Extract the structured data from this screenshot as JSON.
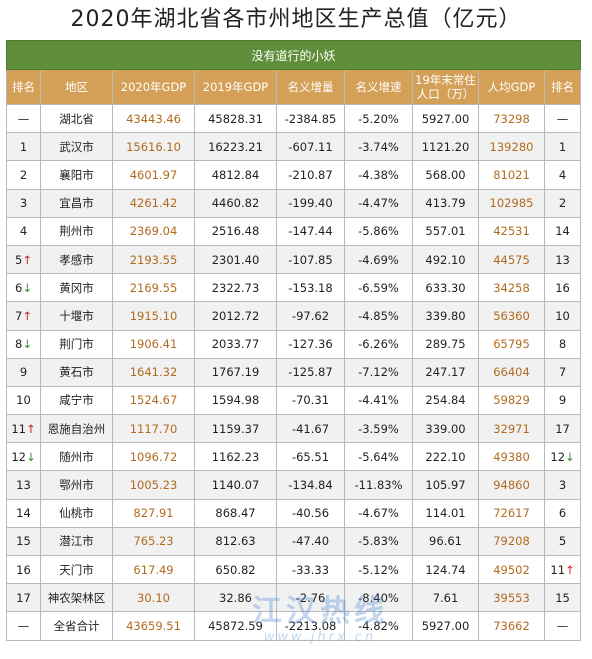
{
  "title": "2020年湖北省各市州地区生产总值（亿元）",
  "subtitle": "没有道行的小妖",
  "headers": {
    "rank": "排名",
    "region": "地区",
    "gdp2020": "2020年GDP",
    "gdp2019": "2019年GDP",
    "nominal_increase": "名义增量",
    "nominal_growth": "名义增速",
    "population_line1": "19年末常住",
    "population_line2": "人口（万）",
    "per_capita": "人均GDP",
    "rank2": "排名"
  },
  "rows": [
    {
      "rank": "—",
      "arrow": "",
      "region": "湖北省",
      "gdp2020": "43443.46",
      "gdp2019": "45828.31",
      "inc": "-2384.85",
      "growth": "-5.20%",
      "pop": "5927.00",
      "per": "73298",
      "rank2": "—",
      "arrow2": ""
    },
    {
      "rank": "1",
      "arrow": "",
      "region": "武汉市",
      "gdp2020": "15616.10",
      "gdp2019": "16223.21",
      "inc": "-607.11",
      "growth": "-3.74%",
      "pop": "1121.20",
      "per": "139280",
      "rank2": "1",
      "arrow2": ""
    },
    {
      "rank": "2",
      "arrow": "",
      "region": "襄阳市",
      "gdp2020": "4601.97",
      "gdp2019": "4812.84",
      "inc": "-210.87",
      "growth": "-4.38%",
      "pop": "568.00",
      "per": "81021",
      "rank2": "4",
      "arrow2": ""
    },
    {
      "rank": "3",
      "arrow": "",
      "region": "宜昌市",
      "gdp2020": "4261.42",
      "gdp2019": "4460.82",
      "inc": "-199.40",
      "growth": "-4.47%",
      "pop": "413.79",
      "per": "102985",
      "rank2": "2",
      "arrow2": ""
    },
    {
      "rank": "4",
      "arrow": "",
      "region": "荆州市",
      "gdp2020": "2369.04",
      "gdp2019": "2516.48",
      "inc": "-147.44",
      "growth": "-5.86%",
      "pop": "557.01",
      "per": "42531",
      "rank2": "14",
      "arrow2": ""
    },
    {
      "rank": "5",
      "arrow": "↑",
      "region": "孝感市",
      "gdp2020": "2193.55",
      "gdp2019": "2301.40",
      "inc": "-107.85",
      "growth": "-4.69%",
      "pop": "492.10",
      "per": "44575",
      "rank2": "13",
      "arrow2": ""
    },
    {
      "rank": "6",
      "arrow": "↓",
      "region": "黄冈市",
      "gdp2020": "2169.55",
      "gdp2019": "2322.73",
      "inc": "-153.18",
      "growth": "-6.59%",
      "pop": "633.30",
      "per": "34258",
      "rank2": "16",
      "arrow2": ""
    },
    {
      "rank": "7",
      "arrow": "↑",
      "region": "十堰市",
      "gdp2020": "1915.10",
      "gdp2019": "2012.72",
      "inc": "-97.62",
      "growth": "-4.85%",
      "pop": "339.80",
      "per": "56360",
      "rank2": "10",
      "arrow2": ""
    },
    {
      "rank": "8",
      "arrow": "↓",
      "region": "荆门市",
      "gdp2020": "1906.41",
      "gdp2019": "2033.77",
      "inc": "-127.36",
      "growth": "-6.26%",
      "pop": "289.75",
      "per": "65795",
      "rank2": "8",
      "arrow2": ""
    },
    {
      "rank": "9",
      "arrow": "",
      "region": "黄石市",
      "gdp2020": "1641.32",
      "gdp2019": "1767.19",
      "inc": "-125.87",
      "growth": "-7.12%",
      "pop": "247.17",
      "per": "66404",
      "rank2": "7",
      "arrow2": ""
    },
    {
      "rank": "10",
      "arrow": "",
      "region": "咸宁市",
      "gdp2020": "1524.67",
      "gdp2019": "1594.98",
      "inc": "-70.31",
      "growth": "-4.41%",
      "pop": "254.84",
      "per": "59829",
      "rank2": "9",
      "arrow2": ""
    },
    {
      "rank": "11",
      "arrow": "↑",
      "region": "恩施自治州",
      "gdp2020": "1117.70",
      "gdp2019": "1159.37",
      "inc": "-41.67",
      "growth": "-3.59%",
      "pop": "339.00",
      "per": "32971",
      "rank2": "17",
      "arrow2": ""
    },
    {
      "rank": "12",
      "arrow": "↓",
      "region": "随州市",
      "gdp2020": "1096.72",
      "gdp2019": "1162.23",
      "inc": "-65.51",
      "growth": "-5.64%",
      "pop": "222.10",
      "per": "49380",
      "rank2": "12",
      "arrow2": "↓"
    },
    {
      "rank": "13",
      "arrow": "",
      "region": "鄂州市",
      "gdp2020": "1005.23",
      "gdp2019": "1140.07",
      "inc": "-134.84",
      "growth": "-11.83%",
      "pop": "105.97",
      "per": "94860",
      "rank2": "3",
      "arrow2": ""
    },
    {
      "rank": "14",
      "arrow": "",
      "region": "仙桃市",
      "gdp2020": "827.91",
      "gdp2019": "868.47",
      "inc": "-40.56",
      "growth": "-4.67%",
      "pop": "114.01",
      "per": "72617",
      "rank2": "6",
      "arrow2": ""
    },
    {
      "rank": "15",
      "arrow": "",
      "region": "潜江市",
      "gdp2020": "765.23",
      "gdp2019": "812.63",
      "inc": "-47.40",
      "growth": "-5.83%",
      "pop": "96.61",
      "per": "79208",
      "rank2": "5",
      "arrow2": ""
    },
    {
      "rank": "16",
      "arrow": "",
      "region": "天门市",
      "gdp2020": "617.49",
      "gdp2019": "650.82",
      "inc": "-33.33",
      "growth": "-5.12%",
      "pop": "124.74",
      "per": "49502",
      "rank2": "11",
      "arrow2": "↑"
    },
    {
      "rank": "17",
      "arrow": "",
      "region": "神农架林区",
      "gdp2020": "30.10",
      "gdp2019": "32.86",
      "inc": "-2.76",
      "growth": "-8.40%",
      "pop": "7.61",
      "per": "39553",
      "rank2": "15",
      "arrow2": ""
    },
    {
      "rank": "—",
      "arrow": "",
      "region": "全省合计",
      "gdp2020": "43659.51",
      "gdp2019": "45872.59",
      "inc": "-2213.08",
      "growth": "-4.82%",
      "pop": "5927.00",
      "per": "73662",
      "rank2": "—",
      "arrow2": ""
    }
  ],
  "watermark": {
    "line1": "江汉热线",
    "line2": "www.jhrx.cn"
  }
}
